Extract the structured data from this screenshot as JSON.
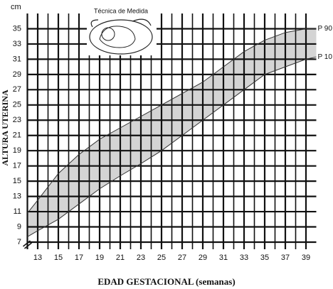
{
  "chart_data": {
    "type": "line",
    "title": "Técnica de Medida",
    "x_label": "EDAD GESTACIONAL (semanas)",
    "y_label": "ALTURA UTERINA",
    "y_unit": "cm",
    "x": [
      12,
      13,
      15,
      17,
      19,
      21,
      23,
      25,
      27,
      29,
      31,
      33,
      35,
      37,
      39,
      40
    ],
    "series": [
      {
        "name": "P 90",
        "color": "#333333",
        "values": [
          10.8,
          12.5,
          16,
          18.5,
          20.5,
          22,
          23.5,
          25,
          26.5,
          28,
          30,
          32,
          33.5,
          34.5,
          35,
          35
        ]
      },
      {
        "name": "P 10",
        "color": "#333333",
        "values": [
          7.7,
          8.5,
          10,
          12,
          14,
          15.7,
          17.3,
          19,
          21,
          23,
          25,
          27,
          29,
          30,
          31,
          31.3
        ]
      }
    ],
    "band_color": "#d4d4d4",
    "xlim": [
      12,
      40
    ],
    "ylim": [
      7,
      37
    ],
    "xticks": [
      13,
      15,
      17,
      19,
      21,
      23,
      25,
      27,
      29,
      31,
      33,
      35,
      37,
      39
    ],
    "xminorticks": [
      14,
      16,
      18,
      20,
      22,
      24,
      26,
      28,
      30,
      32,
      34,
      36,
      38
    ],
    "yticks": [
      7,
      9,
      11,
      13,
      15,
      17,
      19,
      21,
      23,
      25,
      27,
      29,
      31,
      33,
      35
    ],
    "grid": true
  }
}
